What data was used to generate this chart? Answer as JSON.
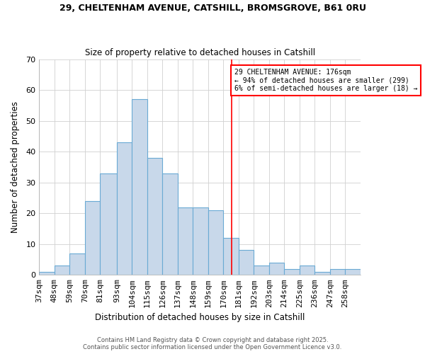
{
  "title1": "29, CHELTENHAM AVENUE, CATSHILL, BROMSGROVE, B61 0RU",
  "title2": "Size of property relative to detached houses in Catshill",
  "xlabel": "Distribution of detached houses by size in Catshill",
  "ylabel": "Number of detached properties",
  "bin_labels": [
    "37sqm",
    "48sqm",
    "59sqm",
    "70sqm",
    "81sqm",
    "93sqm",
    "104sqm",
    "115sqm",
    "126sqm",
    "137sqm",
    "148sqm",
    "159sqm",
    "170sqm",
    "181sqm",
    "192sqm",
    "203sqm",
    "214sqm",
    "225sqm",
    "236sqm",
    "247sqm",
    "258sqm"
  ],
  "bin_edges": [
    37,
    48,
    59,
    70,
    81,
    93,
    104,
    115,
    126,
    137,
    148,
    159,
    170,
    181,
    192,
    203,
    214,
    225,
    236,
    247,
    258,
    269
  ],
  "counts": [
    1,
    3,
    7,
    24,
    33,
    43,
    57,
    38,
    33,
    22,
    22,
    21,
    12,
    8,
    3,
    4,
    2,
    3,
    1,
    2,
    2
  ],
  "bar_color": "#c8d8ea",
  "bar_edgecolor": "#6aaad4",
  "grid_color": "#d0d0d0",
  "vline_x": 176,
  "vline_color": "red",
  "annotation_line1": "29 CHELTENHAM AVENUE: 176sqm",
  "annotation_line2": "← 94% of detached houses are smaller (299)",
  "annotation_line3": "6% of semi-detached houses are larger (18) →",
  "annotation_box_edgecolor": "red",
  "footer1": "Contains HM Land Registry data © Crown copyright and database right 2025.",
  "footer2": "Contains public sector information licensed under the Open Government Licence v3.0.",
  "ylim": [
    0,
    70
  ],
  "yticks": [
    0,
    10,
    20,
    30,
    40,
    50,
    60,
    70
  ],
  "background_color": "#ffffff"
}
